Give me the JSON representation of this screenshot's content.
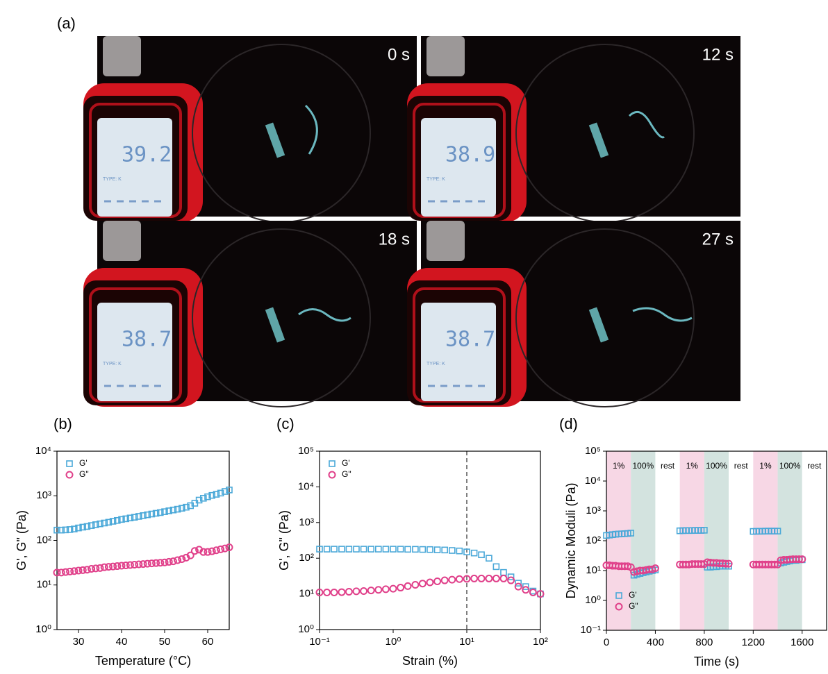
{
  "figure_a": {
    "label": "(a)",
    "probe_type": "TYPE: K",
    "frames": [
      {
        "time": "0 s",
        "reading": "39.2"
      },
      {
        "time": "12 s",
        "reading": "38.9"
      },
      {
        "time": "18 s",
        "reading": "38.7"
      },
      {
        "time": "27 s",
        "reading": "38.7"
      }
    ]
  },
  "chart_data": [
    {
      "type": "scatter",
      "panel_label": "(b)",
      "x_label": "Temperature (°C)",
      "y_label": "G', G\" (Pa)",
      "ylog": true,
      "xlim": [
        25,
        65
      ],
      "xticks": [
        30,
        40,
        50,
        60
      ],
      "ylim": [
        1,
        10000
      ],
      "yticks": [
        {
          "value": 1,
          "label": "10⁰"
        },
        {
          "value": 10,
          "label": "10¹"
        },
        {
          "value": 100,
          "label": "10²"
        },
        {
          "value": 1000,
          "label": "10³"
        },
        {
          "value": 10000,
          "label": "10⁴"
        }
      ],
      "legend": "upper left",
      "x": [
        25,
        26,
        27,
        28,
        29,
        30,
        31,
        32,
        33,
        34,
        35,
        36,
        37,
        38,
        39,
        40,
        41,
        42,
        43,
        44,
        45,
        46,
        47,
        48,
        49,
        50,
        51,
        52,
        53,
        54,
        55,
        56,
        57,
        58,
        59,
        60,
        61,
        62,
        63,
        64,
        65
      ],
      "series": [
        {
          "name": "G'",
          "color": "#4aa8d8",
          "marker": "square",
          "values": [
            170,
            170,
            172,
            175,
            180,
            190,
            198,
            205,
            215,
            225,
            235,
            245,
            255,
            268,
            280,
            295,
            305,
            318,
            330,
            345,
            360,
            375,
            390,
            405,
            420,
            440,
            460,
            480,
            500,
            525,
            555,
            600,
            680,
            800,
            880,
            950,
            1020,
            1080,
            1150,
            1250,
            1350
          ]
        },
        {
          "name": "G\"",
          "color": "#e0408a",
          "marker": "circle",
          "values": [
            19,
            19,
            19.5,
            20,
            20.5,
            21,
            21.5,
            22,
            23,
            23.5,
            24,
            25,
            25.5,
            26,
            26.5,
            27,
            27.5,
            28,
            28.5,
            29,
            29.5,
            30,
            30.5,
            31,
            31.5,
            32,
            33,
            34,
            36,
            38,
            41,
            46,
            58,
            62,
            55,
            55,
            57,
            60,
            63,
            66,
            70
          ]
        }
      ]
    },
    {
      "type": "scatter",
      "panel_label": "(c)",
      "x_label": "Strain (%)",
      "y_label": "G', G\" (Pa)",
      "xlog": true,
      "ylog": true,
      "xlim": [
        0.1,
        100
      ],
      "xticks": [
        {
          "value": 0.1,
          "label": "10⁻¹"
        },
        {
          "value": 1,
          "label": "10⁰"
        },
        {
          "value": 10,
          "label": "10¹"
        },
        {
          "value": 100,
          "label": "10²"
        }
      ],
      "ylim": [
        1,
        100000
      ],
      "yticks": [
        {
          "value": 1,
          "label": "10⁰"
        },
        {
          "value": 10,
          "label": "10¹"
        },
        {
          "value": 100,
          "label": "10²"
        },
        {
          "value": 1000,
          "label": "10³"
        },
        {
          "value": 10000,
          "label": "10⁴"
        },
        {
          "value": 100000,
          "label": "10⁵"
        }
      ],
      "legend": "upper left",
      "vline": 10,
      "x": [
        0.1,
        0.126,
        0.158,
        0.2,
        0.251,
        0.316,
        0.398,
        0.501,
        0.631,
        0.794,
        1,
        1.26,
        1.58,
        2,
        2.51,
        3.16,
        3.98,
        5.01,
        6.31,
        7.94,
        10,
        12.6,
        15.8,
        20,
        25.1,
        31.6,
        39.8,
        50.1,
        63.1,
        79.4,
        100
      ],
      "series": [
        {
          "name": "G'",
          "color": "#4aa8d8",
          "marker": "square",
          "values": [
            180,
            180,
            180,
            180,
            180,
            180,
            180,
            180,
            180,
            180,
            180,
            180,
            178,
            178,
            176,
            175,
            172,
            170,
            165,
            160,
            150,
            140,
            125,
            100,
            58,
            40,
            30,
            20,
            16,
            12,
            10
          ]
        },
        {
          "name": "G\"",
          "color": "#e0408a",
          "marker": "circle",
          "values": [
            11,
            11,
            11,
            11.2,
            11.5,
            11.8,
            12,
            12.5,
            13,
            13.5,
            14,
            15,
            16.5,
            18,
            19.5,
            21,
            22.5,
            24,
            25,
            26,
            26.5,
            27,
            27,
            27,
            27,
            27,
            24,
            16,
            13,
            11,
            10
          ]
        }
      ]
    },
    {
      "type": "scatter",
      "panel_label": "(d)",
      "x_label": "Time (s)",
      "y_label": "Dynamic Moduli (Pa)",
      "ylog": true,
      "xlim": [
        0,
        1800
      ],
      "xticks": [
        0,
        400,
        800,
        1200,
        1600
      ],
      "ylim": [
        0.1,
        100000
      ],
      "yticks": [
        {
          "value": 0.1,
          "label": "10⁻¹"
        },
        {
          "value": 1,
          "label": "10⁰"
        },
        {
          "value": 10,
          "label": "10¹"
        },
        {
          "value": 100,
          "label": "10²"
        },
        {
          "value": 1000,
          "label": "10³"
        },
        {
          "value": 10000,
          "label": "10⁴"
        },
        {
          "value": 100000,
          "label": "10⁵"
        }
      ],
      "legend": "lower left",
      "regions": [
        {
          "start": 0,
          "end": 200,
          "label": "1%",
          "color": "#f7d7e5"
        },
        {
          "start": 200,
          "end": 400,
          "label": "100%",
          "color": "#d3e3df"
        },
        {
          "start": 400,
          "end": 600,
          "label": "rest",
          "color": "#ffffff"
        },
        {
          "start": 600,
          "end": 800,
          "label": "1%",
          "color": "#f7d7e5"
        },
        {
          "start": 800,
          "end": 1000,
          "label": "100%",
          "color": "#d3e3df"
        },
        {
          "start": 1000,
          "end": 1200,
          "label": "rest",
          "color": "#ffffff"
        },
        {
          "start": 1200,
          "end": 1400,
          "label": "1%",
          "color": "#f7d7e5"
        },
        {
          "start": 1400,
          "end": 1600,
          "label": "100%",
          "color": "#d3e3df"
        },
        {
          "start": 1600,
          "end": 1800,
          "label": "rest",
          "color": "#ffffff"
        }
      ],
      "x": [
        0,
        25,
        50,
        75,
        100,
        125,
        150,
        175,
        200,
        225,
        250,
        275,
        300,
        325,
        350,
        375,
        400,
        600,
        625,
        650,
        675,
        700,
        725,
        750,
        775,
        800,
        825,
        850,
        875,
        900,
        925,
        950,
        975,
        1000,
        1200,
        1225,
        1250,
        1275,
        1300,
        1325,
        1350,
        1375,
        1400,
        1425,
        1450,
        1475,
        1500,
        1525,
        1550,
        1575,
        1600
      ],
      "series": [
        {
          "name": "G'",
          "color": "#4aa8d8",
          "marker": "square",
          "values": [
            150,
            155,
            160,
            165,
            168,
            170,
            172,
            175,
            180,
            7,
            7.5,
            8,
            8.5,
            9,
            9.5,
            10,
            10.5,
            215,
            218,
            220,
            220,
            220,
            222,
            222,
            222,
            225,
            13,
            13,
            13.5,
            13.5,
            14,
            14,
            14,
            14,
            205,
            207,
            208,
            208,
            210,
            210,
            210,
            210,
            210,
            18,
            19,
            20,
            21,
            22,
            22,
            23,
            23
          ]
        },
        {
          "name": "G\"",
          "color": "#e0408a",
          "marker": "circle",
          "values": [
            15,
            15,
            14.5,
            14.5,
            14,
            14,
            14,
            14,
            13,
            9,
            9.5,
            10,
            10,
            10.5,
            11,
            11,
            12,
            16,
            16,
            16,
            16,
            16.5,
            16.5,
            16.5,
            16.5,
            16.5,
            19,
            18.5,
            18,
            18,
            17.5,
            17.5,
            17,
            17,
            16,
            16,
            16,
            16,
            16,
            16,
            16,
            16,
            16,
            22,
            23,
            23,
            23.5,
            24,
            24,
            24,
            24
          ]
        }
      ]
    }
  ]
}
